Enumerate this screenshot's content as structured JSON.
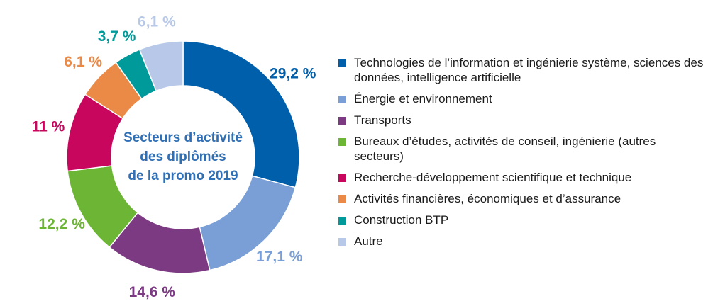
{
  "chart_data": {
    "type": "pie",
    "title": "",
    "center_label": [
      "Secteurs d’activité",
      "des diplômés",
      "de la promo 2019"
    ],
    "legend_position": "right",
    "slices": [
      {
        "name": "Technologies de l’information et ingénierie système, sciences des données, intelligence artificielle",
        "value": 29.2,
        "label": "29,2 %",
        "color": "#005fab"
      },
      {
        "name": "Énergie et environnement",
        "value": 17.1,
        "label": "17,1 %",
        "color": "#7a9fd6"
      },
      {
        "name": "Transports",
        "value": 14.6,
        "label": "14,6 %",
        "color": "#7c3a82"
      },
      {
        "name": "Bureaux d’études, activités de conseil, ingénierie (autres secteurs)",
        "value": 12.2,
        "label": "12,2 %",
        "color": "#6db534"
      },
      {
        "name": "Recherche-développement scientifique et technique",
        "value": 11,
        "label": "11 %",
        "color": "#c8065e"
      },
      {
        "name": "Activités financières, économiques et d’assurance",
        "value": 6.1,
        "label": "6,1 %",
        "color": "#eb8a47"
      },
      {
        "name": "Construction BTP",
        "value": 3.7,
        "label": "3,7 %",
        "color": "#009a9a"
      },
      {
        "name": "Autre",
        "value": 6.1,
        "label": "6,1 %",
        "color": "#b7c8e8"
      }
    ]
  }
}
